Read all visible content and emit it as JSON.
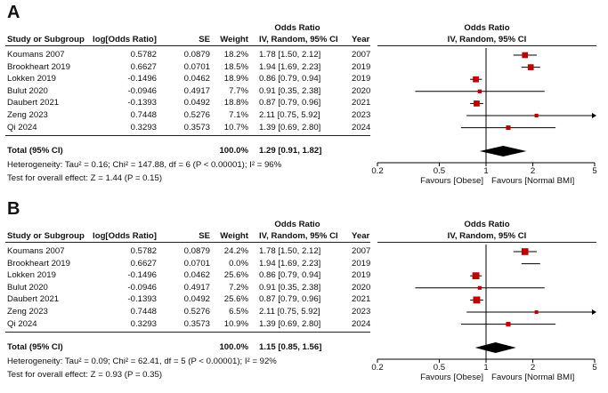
{
  "chart_data": [
    {
      "type": "forest",
      "panel_label": "A",
      "header": {
        "study": "Study or Subgroup",
        "log_or": "log[Odds Ratio]",
        "se": "SE",
        "weight": "Weight",
        "or_group": "Odds Ratio",
        "or_method": "IV, Random, 95% CI",
        "year": "Year",
        "plot_group": "Odds Ratio",
        "plot_method": "IV, Random, 95% CI"
      },
      "studies": [
        {
          "name": "Koumans 2007",
          "log_or": "0.5782",
          "se": "0.0879",
          "weight": "18.2%",
          "ci_text": "1.78 [1.50, 2.12]",
          "year": "2007",
          "or": 1.78,
          "lo": 1.5,
          "hi": 2.12,
          "w": 18.2
        },
        {
          "name": "Brookheart 2019",
          "log_or": "0.6627",
          "se": "0.0701",
          "weight": "18.5%",
          "ci_text": "1.94 [1.69, 2.23]",
          "year": "2019",
          "or": 1.94,
          "lo": 1.69,
          "hi": 2.23,
          "w": 18.5
        },
        {
          "name": "Lokken 2019",
          "log_or": "-0.1496",
          "se": "0.0462",
          "weight": "18.9%",
          "ci_text": "0.86 [0.79, 0.94]",
          "year": "2019",
          "or": 0.86,
          "lo": 0.79,
          "hi": 0.94,
          "w": 18.9
        },
        {
          "name": "Bulut 2020",
          "log_or": "-0.0946",
          "se": "0.4917",
          "weight": "7.7%",
          "ci_text": "0.91 [0.35, 2.38]",
          "year": "2020",
          "or": 0.91,
          "lo": 0.35,
          "hi": 2.38,
          "w": 7.7
        },
        {
          "name": "Daubert 2021",
          "log_or": "-0.1393",
          "se": "0.0492",
          "weight": "18.8%",
          "ci_text": "0.87 [0.79, 0.96]",
          "year": "2021",
          "or": 0.87,
          "lo": 0.79,
          "hi": 0.96,
          "w": 18.8
        },
        {
          "name": "Zeng 2023",
          "log_or": "0.7448",
          "se": "0.5276",
          "weight": "7.1%",
          "ci_text": "2.11 [0.75, 5.92]",
          "year": "2023",
          "or": 2.11,
          "lo": 0.75,
          "hi": 5.92,
          "w": 7.1
        },
        {
          "name": "Qi 2024",
          "log_or": "0.3293",
          "se": "0.3573",
          "weight": "10.7%",
          "ci_text": "1.39 [0.69, 2.80]",
          "year": "2024",
          "or": 1.39,
          "lo": 0.69,
          "hi": 2.8,
          "w": 10.7
        }
      ],
      "total": {
        "label": "Total (95% CI)",
        "weight": "100.0%",
        "ci_text": "1.29 [0.91, 1.82]",
        "or": 1.29,
        "lo": 0.91,
        "hi": 1.82
      },
      "heterogeneity": "Heterogeneity: Tau² = 0.16; Chi² = 147.88, df = 6 (P < 0.00001); I² = 96%",
      "overall_effect": "Test for overall effect: Z = 1.44 (P = 0.15)",
      "axis": {
        "scale": "log",
        "range": [
          0.2,
          5
        ],
        "ticks": [
          "0.2",
          "0.5",
          "1",
          "2",
          "5"
        ],
        "tick_values": [
          0.2,
          0.5,
          1,
          2,
          5
        ]
      },
      "favours_left": "Favours [Obese]",
      "favours_right": "Favours [Normal BMI]",
      "colors": {
        "square": "#c00000",
        "diamond": "#000000",
        "line": "#000000"
      }
    },
    {
      "type": "forest",
      "panel_label": "B",
      "header": {
        "study": "Study or Subgroup",
        "log_or": "log[Odds Ratio]",
        "se": "SE",
        "weight": "Weight",
        "or_group": "Odds Ratio",
        "or_method": "IV, Random, 95% CI",
        "year": "Year",
        "plot_group": "Odds Ratio",
        "plot_method": "IV, Random, 95% CI"
      },
      "studies": [
        {
          "name": "Koumans 2007",
          "log_or": "0.5782",
          "se": "0.0879",
          "weight": "24.2%",
          "ci_text": "1.78 [1.50, 2.12]",
          "year": "2007",
          "or": 1.78,
          "lo": 1.5,
          "hi": 2.12,
          "w": 24.2
        },
        {
          "name": "Brookheart 2019",
          "log_or": "0.6627",
          "se": "0.0701",
          "weight": "0.0%",
          "ci_text": "1.94 [1.69, 2.23]",
          "year": "2019",
          "or": 1.94,
          "lo": 1.69,
          "hi": 2.23,
          "w": 0.0
        },
        {
          "name": "Lokken 2019",
          "log_or": "-0.1496",
          "se": "0.0462",
          "weight": "25.6%",
          "ci_text": "0.86 [0.79, 0.94]",
          "year": "2019",
          "or": 0.86,
          "lo": 0.79,
          "hi": 0.94,
          "w": 25.6
        },
        {
          "name": "Bulut 2020",
          "log_or": "-0.0946",
          "se": "0.4917",
          "weight": "7.2%",
          "ci_text": "0.91 [0.35, 2.38]",
          "year": "2020",
          "or": 0.91,
          "lo": 0.35,
          "hi": 2.38,
          "w": 7.2
        },
        {
          "name": "Daubert 2021",
          "log_or": "-0.1393",
          "se": "0.0492",
          "weight": "25.6%",
          "ci_text": "0.87 [0.79, 0.96]",
          "year": "2021",
          "or": 0.87,
          "lo": 0.79,
          "hi": 0.96,
          "w": 25.6
        },
        {
          "name": "Zeng 2023",
          "log_or": "0.7448",
          "se": "0.5276",
          "weight": "6.5%",
          "ci_text": "2.11 [0.75, 5.92]",
          "year": "2023",
          "or": 2.11,
          "lo": 0.75,
          "hi": 5.92,
          "w": 6.5
        },
        {
          "name": "Qi 2024",
          "log_or": "0.3293",
          "se": "0.3573",
          "weight": "10.9%",
          "ci_text": "1.39 [0.69, 2.80]",
          "year": "2024",
          "or": 1.39,
          "lo": 0.69,
          "hi": 2.8,
          "w": 10.9
        }
      ],
      "total": {
        "label": "Total (95% CI)",
        "weight": "100.0%",
        "ci_text": "1.15 [0.85, 1.56]",
        "or": 1.15,
        "lo": 0.85,
        "hi": 1.56
      },
      "heterogeneity": "Heterogeneity: Tau² = 0.09; Chi² = 62.41, df = 5 (P < 0.00001); I² = 92%",
      "overall_effect": "Test for overall effect: Z = 0.93 (P = 0.35)",
      "axis": {
        "scale": "log",
        "range": [
          0.2,
          5
        ],
        "ticks": [
          "0.2",
          "0.5",
          "1",
          "2",
          "5"
        ],
        "tick_values": [
          0.2,
          0.5,
          1,
          2,
          5
        ]
      },
      "favours_left": "Favours [Obese]",
      "favours_right": "Favours [Normal BMI]",
      "colors": {
        "square": "#c00000",
        "diamond": "#000000",
        "line": "#000000"
      }
    }
  ]
}
